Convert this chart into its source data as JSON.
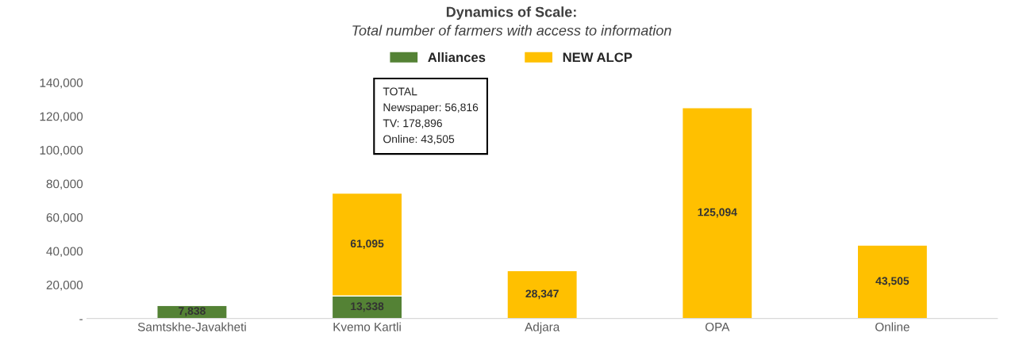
{
  "chart_data": {
    "type": "bar",
    "stacked": true,
    "title": "Dynamics of Scale:",
    "subtitle": "Total number of farmers with access to information",
    "categories": [
      "Samtskhe-Javakheti",
      "Kvemo Kartli",
      "Adjara",
      "OPA",
      "Online"
    ],
    "series": [
      {
        "name": "Alliances",
        "color": "#548235",
        "values": [
          7838,
          13338,
          null,
          null,
          null
        ],
        "value_labels": [
          "7,838",
          "13,338",
          null,
          null,
          null
        ]
      },
      {
        "name": "NEW ALCP",
        "color": "#ffc000",
        "values": [
          null,
          61095,
          28347,
          125094,
          43505
        ],
        "value_labels": [
          null,
          "61,095",
          "28,347",
          "125,094",
          "43,505"
        ]
      }
    ],
    "ylim": [
      0,
      140000
    ],
    "yticks": [
      {
        "value": 0,
        "label": "-"
      },
      {
        "value": 20000,
        "label": "20,000"
      },
      {
        "value": 40000,
        "label": "40,000"
      },
      {
        "value": 60000,
        "label": "60,000"
      },
      {
        "value": 80000,
        "label": "80,000"
      },
      {
        "value": 100000,
        "label": "100,000"
      },
      {
        "value": 120000,
        "label": "120,000"
      },
      {
        "value": 140000,
        "label": "140,000"
      }
    ],
    "grid": false,
    "legend": "top",
    "annotations": [
      "TOTAL\nNewspaper: 56,816\nTV: 178,896\nOnline: 43,505"
    ]
  }
}
